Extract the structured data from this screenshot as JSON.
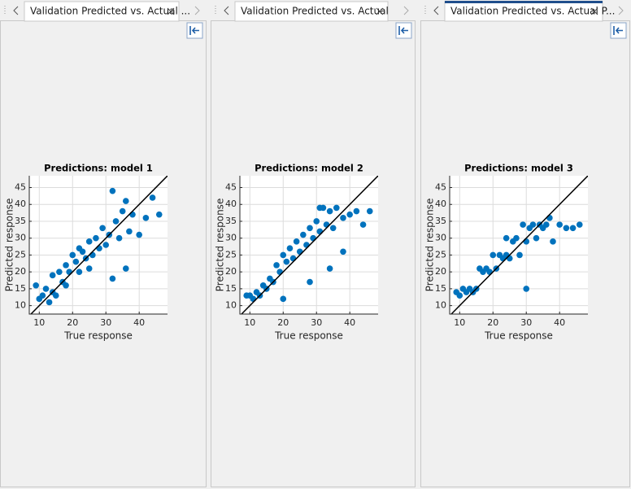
{
  "tabs": [
    "Validation Predicted vs. Actual ...",
    "Validation Predicted vs. Actual",
    "Validation Predicted vs. Actual P..."
  ],
  "chart_data": [
    {
      "type": "scatter",
      "title": "Predictions: model 1",
      "xlabel": "True response",
      "ylabel": "Predicted response",
      "color": "#0072bd",
      "x": [
        9,
        10,
        11,
        12,
        13,
        14,
        14,
        15,
        16,
        17,
        18,
        18,
        19,
        20,
        21,
        22,
        22,
        23,
        24,
        25,
        26,
        27,
        28,
        29,
        30,
        31,
        32,
        33,
        34,
        35,
        36,
        37,
        38,
        40,
        42,
        44,
        46,
        32,
        36,
        25
      ],
      "values": [
        16,
        12,
        13,
        15,
        11,
        19,
        14,
        13,
        20,
        17,
        22,
        16,
        20,
        25,
        23,
        27,
        20,
        26,
        24,
        29,
        25,
        30,
        27,
        33,
        28,
        31,
        44,
        35,
        30,
        38,
        41,
        32,
        37,
        31,
        36,
        42,
        37,
        18,
        21,
        21
      ],
      "xlim": [
        7,
        48.5
      ],
      "ylim": [
        7.5,
        48.5
      ],
      "xticks": [
        10,
        20,
        30,
        40
      ],
      "yticks": [
        10,
        15,
        20,
        25,
        30,
        35,
        40,
        45
      ],
      "grid": true
    },
    {
      "type": "scatter",
      "title": "Predictions: model 2",
      "xlabel": "True response",
      "ylabel": "Predicted response",
      "color": "#0072bd",
      "x": [
        9,
        10,
        11,
        12,
        13,
        14,
        15,
        16,
        17,
        18,
        19,
        20,
        21,
        22,
        23,
        24,
        25,
        26,
        27,
        28,
        29,
        30,
        31,
        32,
        33,
        34,
        35,
        36,
        38,
        40,
        42,
        44,
        46,
        28,
        34,
        38,
        31,
        20
      ],
      "values": [
        13,
        13,
        12,
        14,
        13,
        16,
        15,
        18,
        17,
        22,
        20,
        25,
        23,
        27,
        24,
        29,
        26,
        31,
        28,
        33,
        30,
        35,
        32,
        39,
        34,
        38,
        33,
        39,
        36,
        37,
        38,
        34,
        38,
        17,
        21,
        26,
        39,
        12
      ],
      "xlim": [
        7,
        48.5
      ],
      "ylim": [
        7.5,
        48.5
      ],
      "xticks": [
        10,
        20,
        30,
        40
      ],
      "yticks": [
        10,
        15,
        20,
        25,
        30,
        35,
        40,
        45
      ],
      "grid": true
    },
    {
      "type": "scatter",
      "title": "Predictions: model 3",
      "xlabel": "True response",
      "ylabel": "Predicted response",
      "color": "#0072bd",
      "x": [
        9,
        10,
        11,
        12,
        13,
        14,
        15,
        16,
        17,
        18,
        19,
        20,
        21,
        22,
        23,
        24,
        25,
        26,
        27,
        28,
        29,
        30,
        31,
        32,
        33,
        34,
        35,
        36,
        38,
        40,
        42,
        44,
        46,
        30,
        24,
        37
      ],
      "values": [
        14,
        13,
        15,
        14,
        15,
        14,
        15,
        21,
        20,
        21,
        20,
        25,
        21,
        25,
        24,
        30,
        24,
        29,
        30,
        25,
        34,
        29,
        33,
        34,
        30,
        34,
        33,
        34,
        29,
        34,
        33,
        33,
        34,
        15,
        25,
        36
      ],
      "xlim": [
        7,
        48.5
      ],
      "ylim": [
        7.5,
        48.5
      ],
      "xticks": [
        10,
        20,
        30,
        40
      ],
      "yticks": [
        10,
        15,
        20,
        25,
        30,
        35,
        40,
        45
      ],
      "grid": true
    }
  ]
}
